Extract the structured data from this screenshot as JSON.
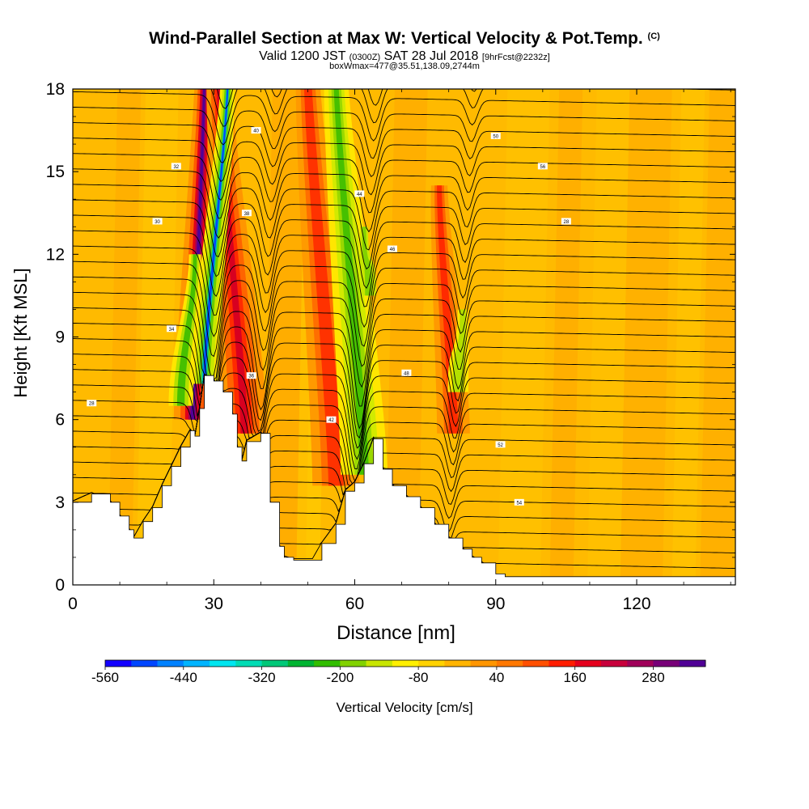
{
  "header": {
    "title": "Wind-Parallel Section at Max W: Vertical Velocity & Pot.Temp.",
    "copyright": "(C)",
    "valid_prefix": "Valid 1200 JST",
    "valid_utc": "(0300Z)",
    "valid_date": "SAT 28 Jul 2018",
    "forecast": "[9hrFcst@2232z]",
    "box_info": "boxWmax=477@35.51,138.09,2744m"
  },
  "chart_data": {
    "type": "heatmap",
    "xlabel": "Distance [nm]",
    "ylabel": "Height [Kft MSL]",
    "xlim": [
      0,
      141
    ],
    "ylim": [
      0,
      18
    ],
    "x_ticks": [
      0,
      30,
      60,
      90,
      120
    ],
    "y_ticks": [
      0,
      3,
      6,
      9,
      12,
      15,
      18
    ],
    "colorbar": {
      "label": "Vertical Velocity [cm/s]",
      "tick_labels": [
        "-560",
        "-440",
        "-320",
        "-200",
        "-80",
        "40",
        "160",
        "280"
      ],
      "colors": [
        "#1400ff",
        "#0046ff",
        "#0082ff",
        "#00b4ff",
        "#00e6f0",
        "#00dcb4",
        "#00c878",
        "#00b432",
        "#32be00",
        "#82d200",
        "#c8e600",
        "#fff000",
        "#ffd200",
        "#ffb400",
        "#ff9600",
        "#ff7800",
        "#ff5000",
        "#ff1e00",
        "#e6001e",
        "#c8003c",
        "#a0005a",
        "#780078",
        "#500096"
      ]
    },
    "terrain_kft": [
      [
        0,
        3.0
      ],
      [
        4,
        3.3
      ],
      [
        8,
        3.0
      ],
      [
        10,
        2.5
      ],
      [
        12,
        2.0
      ],
      [
        13,
        1.7
      ],
      [
        15,
        2.3
      ],
      [
        17,
        2.8
      ],
      [
        19,
        3.6
      ],
      [
        21,
        4.3
      ],
      [
        23,
        5.0
      ],
      [
        25,
        5.6
      ],
      [
        26,
        5.4
      ],
      [
        27,
        6.4
      ],
      [
        28,
        7.6
      ],
      [
        30,
        7.4
      ],
      [
        32,
        7.0
      ],
      [
        34,
        6.2
      ],
      [
        35,
        5.0
      ],
      [
        36,
        4.5
      ],
      [
        37,
        5.2
      ],
      [
        40,
        5.5
      ],
      [
        42,
        3.0
      ],
      [
        44,
        1.4
      ],
      [
        45,
        1.0
      ],
      [
        47,
        0.9
      ],
      [
        51,
        0.9
      ],
      [
        53,
        1.5
      ],
      [
        56,
        2.2
      ],
      [
        58,
        3.4
      ],
      [
        60,
        3.7
      ],
      [
        62,
        4.4
      ],
      [
        64,
        5.3
      ],
      [
        66,
        4.2
      ],
      [
        68,
        3.6
      ],
      [
        71,
        3.2
      ],
      [
        74,
        2.8
      ],
      [
        77,
        2.2
      ],
      [
        80,
        1.7
      ],
      [
        83,
        1.3
      ],
      [
        85,
        1.0
      ],
      [
        87,
        0.8
      ],
      [
        90,
        0.4
      ],
      [
        92,
        0.3
      ],
      [
        141,
        0.3
      ]
    ],
    "updrafts": [
      {
        "x": 25.5,
        "peak_cm_s": 320
      },
      {
        "x": 36.5,
        "peak_cm_s": 200
      },
      {
        "x": 56,
        "peak_cm_s": 180
      },
      {
        "x": 81,
        "peak_cm_s": 160
      }
    ],
    "downdrafts": [
      {
        "x": 28,
        "peak_cm_s": -470
      },
      {
        "x": 23,
        "peak_cm_s": -200
      },
      {
        "x": 62,
        "peak_cm_s": -180
      },
      {
        "x": 82,
        "peak_cm_s": -120
      }
    ],
    "isentrope_label_values": [
      "28",
      "30",
      "32",
      "34",
      "36",
      "38",
      "40",
      "42",
      "44",
      "46",
      "48",
      "50",
      "52",
      "54",
      "56"
    ]
  }
}
